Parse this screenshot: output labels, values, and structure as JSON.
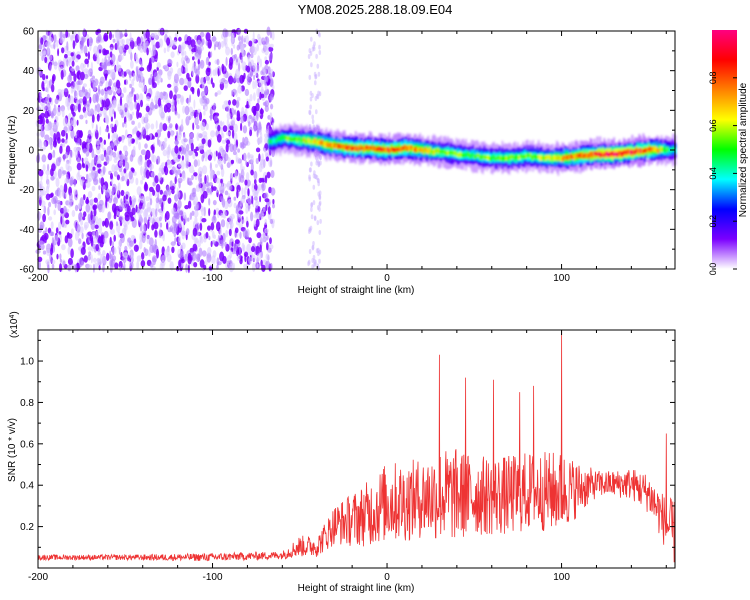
{
  "title": "YM08.2025.288.18.09.E04",
  "chart_data": [
    {
      "type": "heatmap",
      "name": "spectrogram",
      "xlabel": "Height of straight line (km)",
      "ylabel": "Frequency (Hz)",
      "xlim": [
        -200,
        165
      ],
      "ylim": [
        -60,
        60
      ],
      "xticks": [
        -200,
        -100,
        0,
        100
      ],
      "yticks": [
        60,
        40,
        20,
        0,
        -20,
        -40,
        -60
      ],
      "ytick_labels": [
        "60",
        "40",
        "20",
        "0",
        "-20",
        "-40",
        "-60"
      ],
      "noise_region_km": [
        -200,
        -65
      ],
      "faint_band_km": [
        -45,
        -38
      ],
      "signal_track": {
        "x": [
          -68,
          -60,
          -50,
          -40,
          -30,
          -20,
          -10,
          0,
          10,
          20,
          30,
          40,
          50,
          60,
          70,
          80,
          90,
          100,
          110,
          120,
          130,
          140,
          150,
          160,
          165
        ],
        "freq": [
          4,
          6,
          5,
          4,
          2,
          1,
          1,
          0,
          1,
          0,
          -1,
          -2,
          -3,
          -4,
          -4,
          -3,
          -4,
          -4,
          -3,
          -2,
          -2,
          -1,
          0,
          0,
          0
        ],
        "peak_amplitude": [
          0.4,
          0.5,
          0.6,
          0.7,
          0.75,
          0.85,
          0.8,
          0.85,
          0.8,
          0.7,
          0.6,
          0.55,
          0.5,
          0.55,
          0.6,
          0.55,
          0.6,
          0.7,
          0.8,
          0.9,
          0.95,
          0.9,
          0.85,
          0.5,
          0.4
        ]
      },
      "colorbar": {
        "label": "Normalized spectral amplitude",
        "range": [
          0,
          1
        ],
        "ticks": [
          0.0,
          0.2,
          0.4,
          0.6,
          0.8
        ],
        "tick_labels": [
          "0.0",
          "0.2",
          "0.4",
          "0.6",
          "0.8"
        ],
        "colors": [
          "#ffffff",
          "#7b00ff",
          "#0000ff",
          "#00ffff",
          "#00ff00",
          "#ffff00",
          "#ff8000",
          "#ff0000",
          "#ff0080"
        ]
      }
    },
    {
      "type": "line",
      "name": "snr",
      "xlabel": "Height of straight line (km)",
      "ylabel": "SNR (10 * v/v)",
      "multiplier_label": "(x10",
      "multiplier_exponent": "4",
      "multiplier_close": ")",
      "xlim": [
        -200,
        165
      ],
      "ylim": [
        0,
        1.15
      ],
      "xticks": [
        -200,
        -100,
        0,
        100
      ],
      "yticks": [
        0.2,
        0.4,
        0.6,
        0.8,
        1.0
      ],
      "ytick_labels": [
        "0.2",
        "0.4",
        "0.6",
        "0.8",
        "1.0"
      ],
      "color": "#ee3333",
      "envelope": {
        "x": [
          -200,
          -150,
          -100,
          -60,
          -50,
          -40,
          -30,
          -20,
          -10,
          0,
          10,
          20,
          30,
          40,
          50,
          60,
          70,
          80,
          90,
          100,
          110,
          120,
          130,
          140,
          150,
          160,
          165
        ],
        "base": [
          0.05,
          0.05,
          0.05,
          0.06,
          0.1,
          0.1,
          0.2,
          0.22,
          0.25,
          0.3,
          0.3,
          0.32,
          0.33,
          0.33,
          0.33,
          0.33,
          0.33,
          0.35,
          0.35,
          0.35,
          0.37,
          0.4,
          0.4,
          0.4,
          0.35,
          0.2,
          0.15
        ],
        "spread": [
          0.02,
          0.02,
          0.03,
          0.03,
          0.08,
          0.08,
          0.15,
          0.2,
          0.25,
          0.3,
          0.3,
          0.3,
          0.35,
          0.35,
          0.3,
          0.3,
          0.3,
          0.3,
          0.3,
          0.3,
          0.2,
          0.1,
          0.1,
          0.12,
          0.15,
          0.2,
          0.25
        ]
      },
      "peaks": [
        {
          "x": 30,
          "y": 1.03
        },
        {
          "x": 45,
          "y": 0.92
        },
        {
          "x": 61,
          "y": 0.91
        },
        {
          "x": 100,
          "y": 1.15
        },
        {
          "x": 76,
          "y": 0.85
        },
        {
          "x": 84,
          "y": 0.88
        },
        {
          "x": 160,
          "y": 0.65
        }
      ]
    }
  ]
}
